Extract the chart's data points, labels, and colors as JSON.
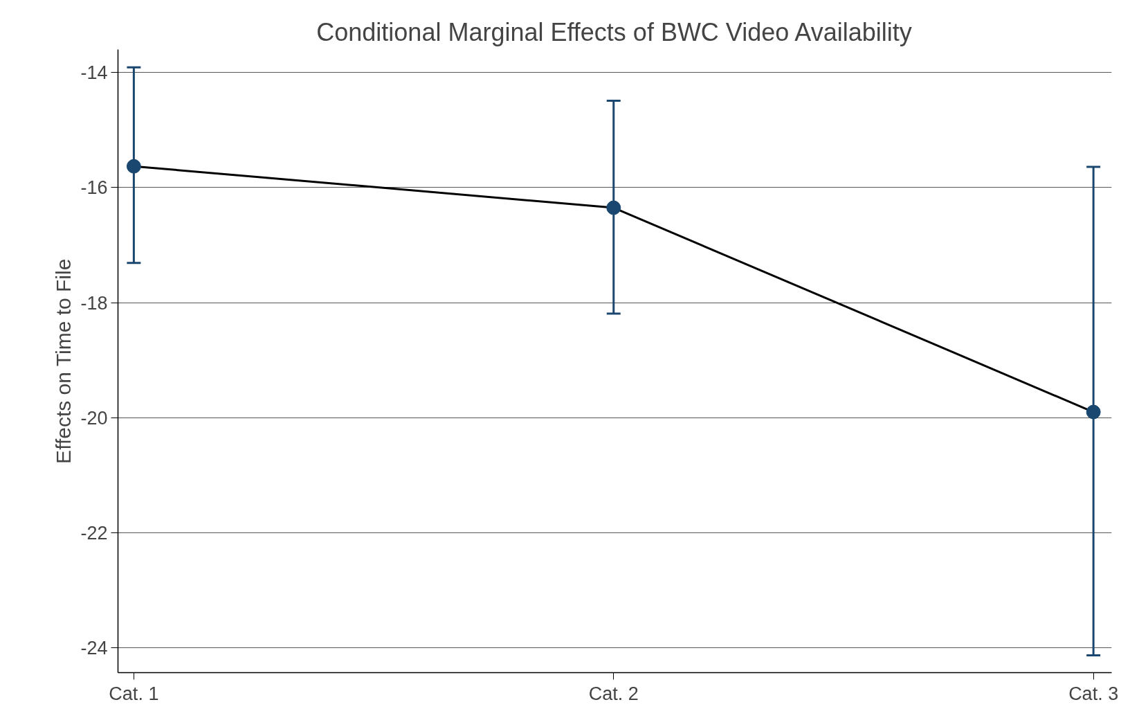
{
  "chart_data": {
    "type": "line",
    "title": "Conditional Marginal Effects of BWC Video Availability",
    "ylabel": "Effects on Time to File",
    "categories": [
      "Cat. 1",
      "Cat. 2",
      "Cat. 3"
    ],
    "series": [
      {
        "color": "#1a476f",
        "values": [
          -15.63,
          -16.35,
          -19.9
        ],
        "errors": [
          [
            -17.31,
            -13.91
          ],
          [
            -18.19,
            -14.49
          ],
          [
            -24.13,
            -15.64
          ]
        ]
      }
    ],
    "ylim": [
      -24.43,
      -13.6
    ],
    "yticks": [
      -24,
      -22,
      -20,
      -18,
      -16,
      -14
    ],
    "grid": "y",
    "marker": "circle",
    "line_style": "solid"
  }
}
